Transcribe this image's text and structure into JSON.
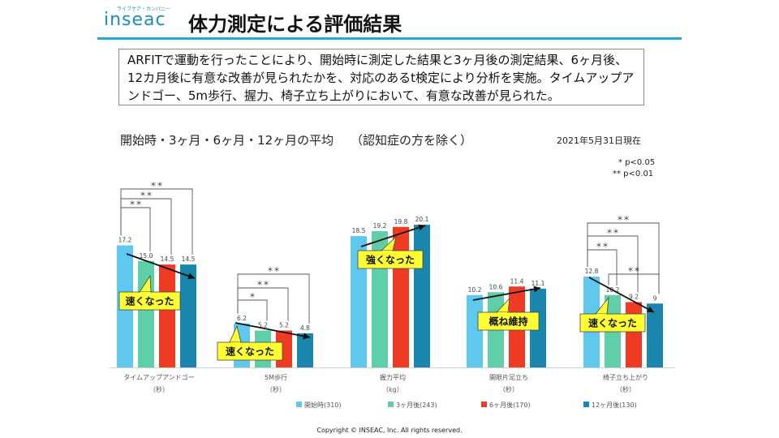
{
  "header": {
    "logo_tagline": "ライブケア・カンパニー",
    "logo_text": "inseac",
    "title": "体力測定による評価結果"
  },
  "summary_text": "ARFITで運動を行ったことにより、開始時に測定した結果と3ヶ月後の測定結果、6ヶ月後、12カ月後に有意な改善が見られたかを、対応のあるt検定により分析を実施。タイムアップアンドゴー、5m歩行、握力、椅子立ち上がりにおいて、有意な改善が見られた。",
  "chart_title": "開始時・3ヶ月・6ヶ月・12ヶ月の平均",
  "chart_note": "（認知症の方を除く）",
  "date_label": "2021年5月31日現在",
  "significance": {
    "p05": "* p<0.05",
    "p01": "** p<0.01"
  },
  "footer": "Copyright © INSEAC, Inc. All rights reserved.",
  "colors": {
    "accent": "#22a7d8",
    "series": [
      "#5ec8ef",
      "#5fcfaa",
      "#ef3b24",
      "#1a86ad"
    ],
    "callout": "#ffff33"
  },
  "chart_data": {
    "type": "bar",
    "categories": [
      {
        "label": "タイムアップアンドゴー",
        "unit": "（秒）"
      },
      {
        "label": "5M歩行",
        "unit": "（秒）"
      },
      {
        "label": "握力平均",
        "unit": "（kg）"
      },
      {
        "label": "開眼片足立ち",
        "unit": "（秒）"
      },
      {
        "label": "椅子立ち上がり",
        "unit": "（秒）"
      }
    ],
    "series": [
      {
        "name": "開始時(310)",
        "values": [
          17.2,
          6.2,
          18.5,
          10.2,
          12.8
        ]
      },
      {
        "name": "3ヶ月後(243)",
        "values": [
          15.0,
          5.2,
          19.2,
          10.6,
          10.2
        ]
      },
      {
        "name": "6ヶ月後(170)",
        "values": [
          14.5,
          5.2,
          19.8,
          11.4,
          9.2
        ]
      },
      {
        "name": "12ヶ月後(130)",
        "values": [
          14.5,
          4.8,
          20.1,
          11.1,
          9
        ]
      }
    ],
    "value_labels": [
      [
        "17.2",
        "15.0",
        "14.5",
        "14.5"
      ],
      [
        "6.2",
        "5.2",
        "5.2",
        "4.8"
      ],
      [
        "18.5",
        "19.2",
        "19.8",
        "20.1"
      ],
      [
        "10.2",
        "10.6",
        "11.4",
        "11.1"
      ],
      [
        "12.8",
        "10.2",
        "9.2",
        "9"
      ]
    ],
    "callouts": [
      "速くなった",
      "速くなった",
      "強くなった",
      "概ね維持",
      "速くなった"
    ],
    "significance_brackets": [
      {
        "group": 0,
        "from": 0,
        "to": 1,
        "mark": "＊＊"
      },
      {
        "group": 0,
        "from": 0,
        "to": 2,
        "mark": "＊＊"
      },
      {
        "group": 0,
        "from": 0,
        "to": 3,
        "mark": "＊＊"
      },
      {
        "group": 1,
        "from": 0,
        "to": 1,
        "mark": "＊"
      },
      {
        "group": 1,
        "from": 0,
        "to": 2,
        "mark": "＊＊"
      },
      {
        "group": 1,
        "from": 0,
        "to": 3,
        "mark": "＊＊"
      },
      {
        "group": 4,
        "from": 0,
        "to": 1,
        "mark": "＊＊"
      },
      {
        "group": 4,
        "from": 0,
        "to": 2,
        "mark": "＊＊"
      },
      {
        "group": 4,
        "from": 0,
        "to": 3,
        "mark": "＊＊"
      },
      {
        "group": 4,
        "from": 1,
        "to": 3,
        "mark": "＊＊"
      }
    ],
    "legend_position": "bottom",
    "grid": false
  }
}
